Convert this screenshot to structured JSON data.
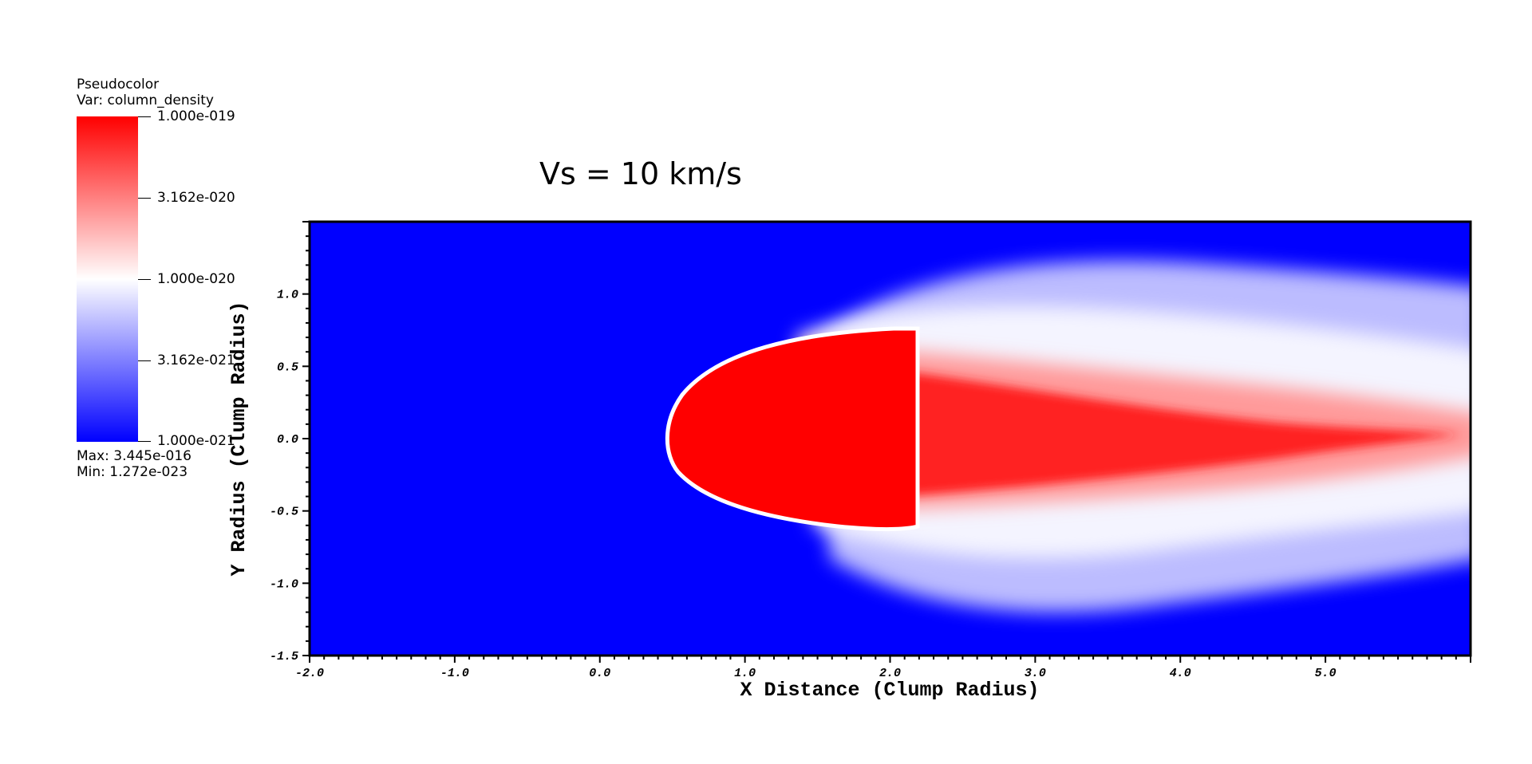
{
  "legend": {
    "title": "Pseudocolor",
    "var_label": "Var: column_density",
    "tick_labels": [
      "1.000e-019",
      "3.162e-020",
      "1.000e-020",
      "3.162e-021",
      "1.000e-021"
    ],
    "max_label": "Max:  3.445e-016",
    "min_label": "Min:  1.272e-023",
    "colors": {
      "high": "#ff0000",
      "mid": "#ffffff",
      "low": "#0000ff"
    },
    "scale": "log"
  },
  "chart_data": {
    "type": "heatmap",
    "title": "Vs = 10 km/s",
    "xlabel": "X Distance (Clump Radius)",
    "ylabel": "Y Radius (Clump Radius)",
    "xlim": [
      -2.0,
      6.0
    ],
    "ylim": [
      -1.5,
      1.5
    ],
    "x_ticks": [
      -2.0,
      -1.0,
      0.0,
      1.0,
      2.0,
      3.0,
      4.0,
      5.0
    ],
    "x_tick_labels": [
      "-2.0",
      "-1.0",
      "0.0",
      "1.0",
      "2.0",
      "3.0",
      "4.0",
      "5.0"
    ],
    "y_ticks": [
      -1.5,
      -1.0,
      -0.5,
      0.0,
      0.5,
      1.0
    ],
    "y_tick_labels": [
      "-1.5",
      "-1.0",
      "-0.5",
      "0.0",
      "0.5",
      "1.0"
    ],
    "variable": "column_density",
    "color_range": [
      1e-21,
      1e-19
    ],
    "background_color": "#0000ff",
    "features": {
      "clump_head_x": 0.5,
      "tail_extent_x": 6.0,
      "half_width_y": 1.0
    }
  }
}
